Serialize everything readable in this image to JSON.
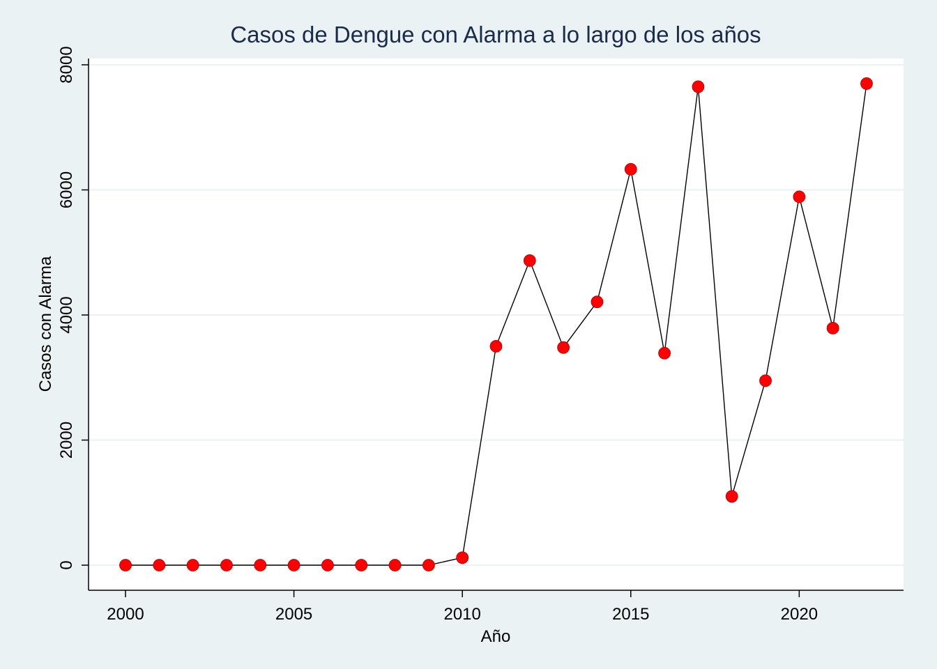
{
  "chart_data": {
    "type": "line",
    "title": "Casos de Dengue con Alarma a lo largo de los años",
    "xlabel": "Año",
    "ylabel": "Casos con Alarma",
    "xlim": [
      1999,
      2023
    ],
    "ylim": [
      -400,
      8100
    ],
    "x_ticks": [
      2000,
      2005,
      2010,
      2015,
      2020
    ],
    "y_ticks": [
      0,
      2000,
      4000,
      6000,
      8000
    ],
    "grid": true,
    "series": [
      {
        "x": [
          2000,
          2001,
          2002,
          2003,
          2004,
          2005,
          2006,
          2007,
          2008,
          2009,
          2010,
          2011,
          2012,
          2013,
          2014,
          2015,
          2016,
          2017,
          2018,
          2019,
          2020,
          2021,
          2022
        ],
        "values": [
          0,
          0,
          0,
          0,
          0,
          0,
          0,
          0,
          0,
          0,
          120,
          3500,
          4870,
          3480,
          4210,
          6330,
          3390,
          7650,
          1100,
          2950,
          5890,
          3790,
          7700
        ]
      }
    ],
    "colors": {
      "background": "#eaf2f3",
      "plot_background": "#ffffff",
      "title": "#1a2b4c",
      "line": "#000000",
      "marker": "#ff0000",
      "grid": "#eaf2f3"
    }
  }
}
